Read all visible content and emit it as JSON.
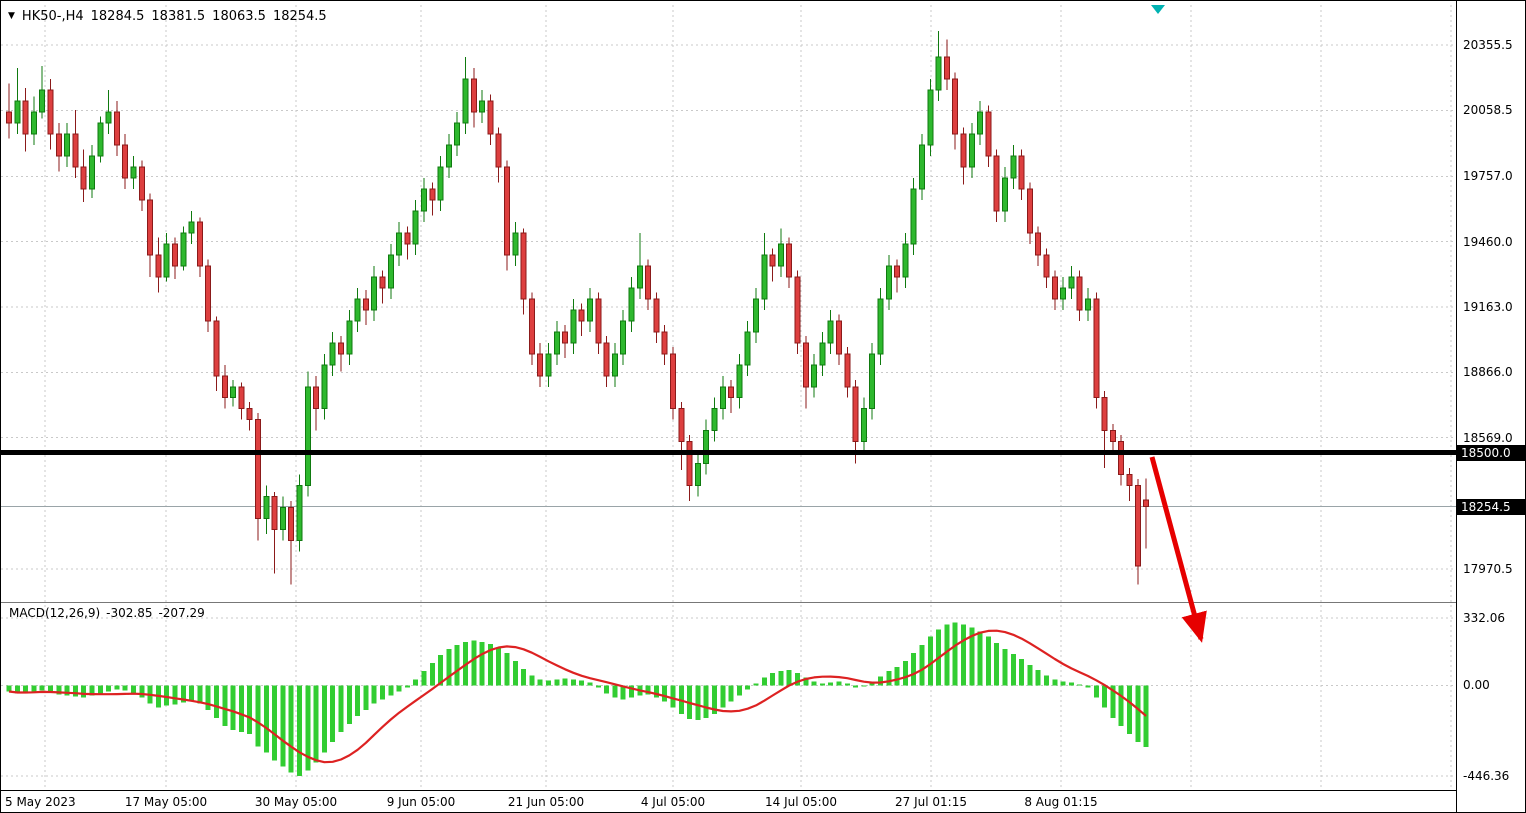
{
  "header": {
    "dropdown_icon": "▼",
    "symbol_tf": "HK50-,H4",
    "open": "18284.5",
    "high": "18381.5",
    "low": "18063.5",
    "close": "18254.5"
  },
  "indicator": {
    "name": "MACD(12,26,9)",
    "macd_value": "-302.85",
    "signal_value": "-207.29"
  },
  "price_axis": {
    "tick_labels": [
      "20355.5",
      "20058.5",
      "19757.0",
      "19460.0",
      "19163.0",
      "18866.0",
      "18569.0",
      "17970.5"
    ],
    "badges": [
      "18500.0",
      "18254.5"
    ]
  },
  "macd_axis": {
    "tick_labels": [
      "332.06",
      "0.00",
      "-446.36"
    ]
  },
  "time_axis": {
    "labels": [
      "5 May 2023",
      "17 May 05:00",
      "30 May 05:00",
      "9 Jun 05:00",
      "21 Jun 05:00",
      "4 Jul 05:00",
      "14 Jul 05:00",
      "27 Jul 01:15",
      "8 Aug 01:15"
    ]
  },
  "chart_data": {
    "type": "candlestick",
    "symbol": "HK50-",
    "timeframe": "H4",
    "title": "HK50-,H4 18284.5 18381.5 18063.5 18254.5",
    "price_ticks": [
      20355.5,
      20058.5,
      19757.0,
      19460.0,
      19163.0,
      18866.0,
      18569.0,
      17970.5
    ],
    "level_line": 18500.0,
    "current_price": 18254.5,
    "candles": [
      [
        20050,
        20180,
        19930,
        20000
      ],
      [
        20000,
        20250,
        19950,
        20100
      ],
      [
        20100,
        20160,
        19870,
        19950
      ],
      [
        19950,
        20120,
        19900,
        20050
      ],
      [
        20050,
        20260,
        20020,
        20150
      ],
      [
        20150,
        20200,
        19880,
        19950
      ],
      [
        19950,
        20000,
        19780,
        19850
      ],
      [
        19850,
        20000,
        19800,
        19950
      ],
      [
        19950,
        20060,
        19750,
        19800
      ],
      [
        19800,
        19880,
        19640,
        19700
      ],
      [
        19700,
        19900,
        19660,
        19850
      ],
      [
        19850,
        20030,
        19820,
        20000
      ],
      [
        20000,
        20150,
        19950,
        20050
      ],
      [
        20050,
        20100,
        19850,
        19900
      ],
      [
        19900,
        19950,
        19700,
        19750
      ],
      [
        19750,
        19850,
        19700,
        19800
      ],
      [
        19800,
        19830,
        19600,
        19650
      ],
      [
        19650,
        19680,
        19300,
        19400
      ],
      [
        19400,
        19480,
        19230,
        19300
      ],
      [
        19300,
        19500,
        19280,
        19450
      ],
      [
        19450,
        19480,
        19290,
        19350
      ],
      [
        19350,
        19530,
        19330,
        19500
      ],
      [
        19500,
        19600,
        19450,
        19550
      ],
      [
        19550,
        19570,
        19300,
        19350
      ],
      [
        19350,
        19380,
        19050,
        19100
      ],
      [
        19100,
        19120,
        18780,
        18850
      ],
      [
        18850,
        18900,
        18700,
        18750
      ],
      [
        18750,
        18830,
        18710,
        18800
      ],
      [
        18800,
        18820,
        18650,
        18700
      ],
      [
        18700,
        18730,
        18600,
        18650
      ],
      [
        18650,
        18680,
        18100,
        18200
      ],
      [
        18200,
        18350,
        18130,
        18300
      ],
      [
        18300,
        18320,
        17950,
        18150
      ],
      [
        18150,
        18300,
        18100,
        18250
      ],
      [
        18250,
        18280,
        17900,
        18100
      ],
      [
        18100,
        18400,
        18050,
        18350
      ],
      [
        18350,
        18870,
        18300,
        18800
      ],
      [
        18800,
        18850,
        18600,
        18700
      ],
      [
        18700,
        18950,
        18650,
        18900
      ],
      [
        18900,
        19050,
        18850,
        19000
      ],
      [
        19000,
        19030,
        18870,
        18950
      ],
      [
        18950,
        19150,
        18900,
        19100
      ],
      [
        19100,
        19250,
        19050,
        19200
      ],
      [
        19200,
        19240,
        19080,
        19150
      ],
      [
        19150,
        19350,
        19100,
        19300
      ],
      [
        19300,
        19330,
        19180,
        19250
      ],
      [
        19250,
        19450,
        19200,
        19400
      ],
      [
        19400,
        19550,
        19350,
        19500
      ],
      [
        19500,
        19530,
        19380,
        19450
      ],
      [
        19450,
        19650,
        19400,
        19600
      ],
      [
        19600,
        19750,
        19550,
        19700
      ],
      [
        19700,
        19730,
        19580,
        19650
      ],
      [
        19650,
        19850,
        19600,
        19800
      ],
      [
        19800,
        19950,
        19750,
        19900
      ],
      [
        19900,
        20050,
        19850,
        20000
      ],
      [
        20000,
        20300,
        19950,
        20200
      ],
      [
        20200,
        20250,
        19980,
        20050
      ],
      [
        20050,
        20150,
        20000,
        20100
      ],
      [
        20100,
        20130,
        19900,
        19950
      ],
      [
        19950,
        19980,
        19730,
        19800
      ],
      [
        19800,
        19830,
        19330,
        19400
      ],
      [
        19400,
        19550,
        19350,
        19500
      ],
      [
        19500,
        19520,
        19130,
        19200
      ],
      [
        19200,
        19230,
        18900,
        18950
      ],
      [
        18950,
        19000,
        18800,
        18850
      ],
      [
        18850,
        19000,
        18800,
        18950
      ],
      [
        18950,
        19100,
        18900,
        19050
      ],
      [
        19050,
        19080,
        18930,
        19000
      ],
      [
        19000,
        19200,
        18950,
        19150
      ],
      [
        19150,
        19180,
        19030,
        19100
      ],
      [
        19100,
        19250,
        19050,
        19200
      ],
      [
        19200,
        19230,
        18950,
        19000
      ],
      [
        19000,
        19030,
        18800,
        18850
      ],
      [
        18850,
        19000,
        18800,
        18950
      ],
      [
        18950,
        19150,
        18900,
        19100
      ],
      [
        19100,
        19300,
        19050,
        19250
      ],
      [
        19250,
        19500,
        19200,
        19350
      ],
      [
        19350,
        19380,
        19150,
        19200
      ],
      [
        19200,
        19230,
        19000,
        19050
      ],
      [
        19050,
        19080,
        18900,
        18950
      ],
      [
        18950,
        18980,
        18650,
        18700
      ],
      [
        18700,
        18730,
        18420,
        18550
      ],
      [
        18550,
        18580,
        18280,
        18350
      ],
      [
        18350,
        18500,
        18300,
        18450
      ],
      [
        18450,
        18650,
        18400,
        18600
      ],
      [
        18600,
        18750,
        18550,
        18700
      ],
      [
        18700,
        18850,
        18650,
        18800
      ],
      [
        18800,
        18830,
        18680,
        18750
      ],
      [
        18750,
        18950,
        18700,
        18900
      ],
      [
        18900,
        19100,
        18850,
        19050
      ],
      [
        19050,
        19250,
        19000,
        19200
      ],
      [
        19200,
        19500,
        19150,
        19400
      ],
      [
        19400,
        19430,
        19280,
        19350
      ],
      [
        19350,
        19520,
        19300,
        19450
      ],
      [
        19450,
        19480,
        19250,
        19300
      ],
      [
        19300,
        19330,
        18950,
        19000
      ],
      [
        19000,
        19030,
        18700,
        18800
      ],
      [
        18800,
        18950,
        18750,
        18900
      ],
      [
        18900,
        19050,
        18850,
        19000
      ],
      [
        19000,
        19150,
        18950,
        19100
      ],
      [
        19100,
        19130,
        18900,
        18950
      ],
      [
        18950,
        18980,
        18750,
        18800
      ],
      [
        18800,
        18830,
        18450,
        18550
      ],
      [
        18550,
        18750,
        18500,
        18700
      ],
      [
        18700,
        19000,
        18650,
        18950
      ],
      [
        18950,
        19250,
        18900,
        19200
      ],
      [
        19200,
        19400,
        19150,
        19350
      ],
      [
        19350,
        19380,
        19230,
        19300
      ],
      [
        19300,
        19500,
        19250,
        19450
      ],
      [
        19450,
        19750,
        19400,
        19700
      ],
      [
        19700,
        19950,
        19650,
        19900
      ],
      [
        19900,
        20200,
        19850,
        20150
      ],
      [
        20150,
        20420,
        20100,
        20300
      ],
      [
        20300,
        20380,
        20150,
        20200
      ],
      [
        20200,
        20230,
        19880,
        19950
      ],
      [
        19950,
        19980,
        19720,
        19800
      ],
      [
        19800,
        20000,
        19750,
        19950
      ],
      [
        19950,
        20100,
        19900,
        20050
      ],
      [
        20050,
        20080,
        19800,
        19850
      ],
      [
        19850,
        19880,
        19550,
        19600
      ],
      [
        19600,
        19800,
        19550,
        19750
      ],
      [
        19750,
        19900,
        19700,
        19850
      ],
      [
        19850,
        19880,
        19650,
        19700
      ],
      [
        19700,
        19730,
        19450,
        19500
      ],
      [
        19500,
        19530,
        19350,
        19400
      ],
      [
        19400,
        19430,
        19250,
        19300
      ],
      [
        19300,
        19330,
        19150,
        19200
      ],
      [
        19200,
        19300,
        19150,
        19250
      ],
      [
        19250,
        19350,
        19200,
        19300
      ],
      [
        19300,
        19330,
        19100,
        19150
      ],
      [
        19150,
        19250,
        19100,
        19200
      ],
      [
        19200,
        19230,
        18700,
        18750
      ],
      [
        18750,
        18780,
        18430,
        18600
      ],
      [
        18600,
        18630,
        18500,
        18550
      ],
      [
        18550,
        18580,
        18350,
        18400
      ],
      [
        18400,
        18430,
        18280,
        18350
      ],
      [
        18350,
        18380,
        17900,
        17985
      ],
      [
        18284.5,
        18381.5,
        18063.5,
        18254.5
      ]
    ],
    "macd": {
      "ticks": [
        332.06,
        0.0,
        -446.36
      ],
      "macd_value": -302.85,
      "signal_value": -207.29,
      "histogram": [
        -30,
        -40,
        -35,
        -30,
        -25,
        -35,
        -45,
        -50,
        -55,
        -60,
        -50,
        -40,
        -30,
        -20,
        -25,
        -40,
        -60,
        -90,
        -110,
        -100,
        -95,
        -85,
        -80,
        -90,
        -120,
        -160,
        -200,
        -220,
        -230,
        -240,
        -300,
        -330,
        -370,
        -400,
        -430,
        -446,
        -420,
        -380,
        -330,
        -280,
        -230,
        -190,
        -150,
        -120,
        -90,
        -70,
        -50,
        -30,
        -10,
        30,
        70,
        110,
        150,
        180,
        200,
        215,
        220,
        215,
        205,
        185,
        160,
        120,
        80,
        50,
        30,
        25,
        30,
        35,
        30,
        25,
        15,
        -10,
        -40,
        -60,
        -70,
        -60,
        -50,
        -45,
        -60,
        -80,
        -110,
        -140,
        -165,
        -170,
        -160,
        -140,
        -110,
        -80,
        -50,
        -20,
        10,
        40,
        60,
        70,
        75,
        60,
        40,
        20,
        10,
        15,
        20,
        10,
        -10,
        0,
        20,
        45,
        70,
        90,
        120,
        160,
        200,
        240,
        275,
        300,
        310,
        300,
        285,
        265,
        240,
        210,
        180,
        155,
        130,
        100,
        75,
        50,
        30,
        20,
        15,
        5,
        -10,
        -60,
        -110,
        -160,
        -200,
        -240,
        -280,
        -302.85
      ]
    },
    "annotations": [
      {
        "type": "arrow",
        "direction": "down-right",
        "from_price": 18500,
        "color": "#e60000"
      }
    ],
    "colors": {
      "bull": "#2eb82e",
      "bull_border": "#0f7a0f",
      "bear": "#dd3f3f",
      "bear_border": "#8b1a1a",
      "histogram": "#32cd32",
      "signal": "#dd2222",
      "level": "#000000",
      "grid": "#c9c9c9",
      "arrow": "#e60000",
      "current_price_line": "#9aa4a8",
      "shift_marker": "#00b2b2",
      "badge_bg": "#000000",
      "badge_text": "#ffffff"
    }
  }
}
